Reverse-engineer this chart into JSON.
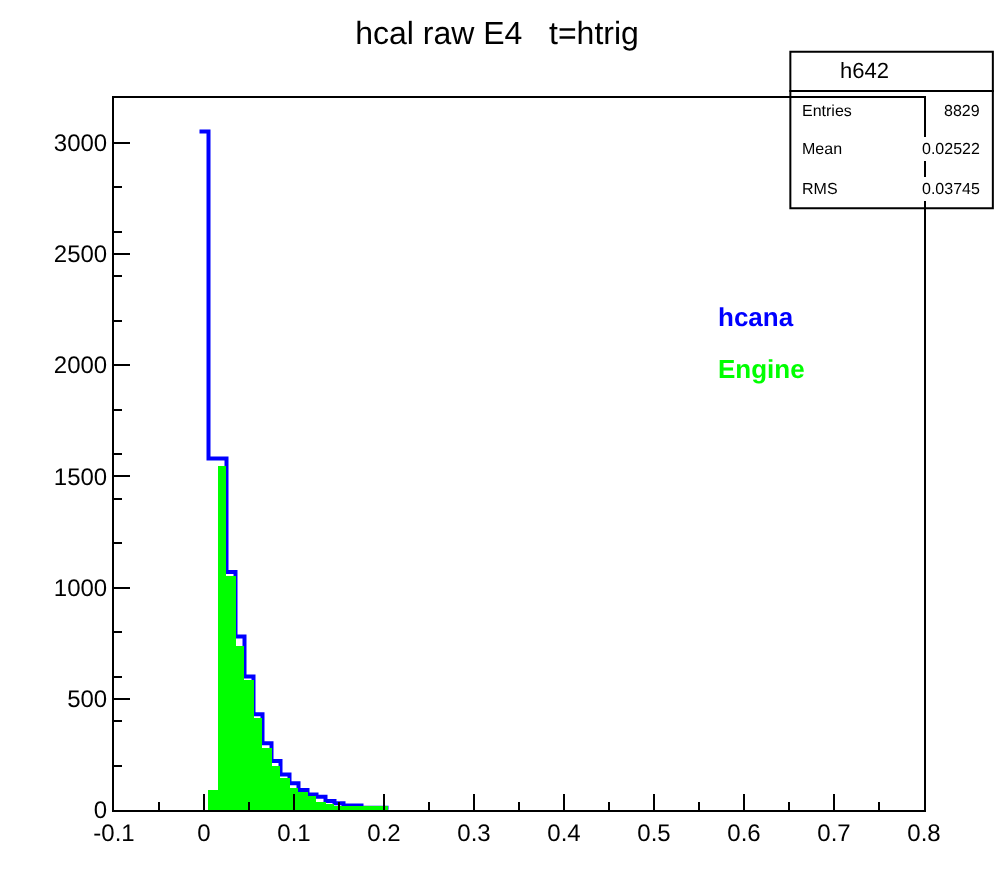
{
  "chart_data": {
    "type": "histogram",
    "title": "hcal raw E4   t=htrig",
    "bins": [
      -0.005,
      0.005,
      0.015,
      0.025,
      0.035,
      0.045,
      0.055,
      0.065,
      0.075,
      0.085,
      0.095,
      0.105,
      0.115,
      0.125,
      0.135,
      0.145,
      0.155,
      0.165,
      0.175,
      0.185,
      0.195,
      0.205,
      0.215
    ],
    "series": [
      {
        "name": "hcana",
        "type": "step",
        "color": "#0000ff",
        "x": [
          -0.005,
          0.005,
          0.015,
          0.025,
          0.035,
          0.045,
          0.055,
          0.065,
          0.075,
          0.085,
          0.095,
          0.105,
          0.115,
          0.125,
          0.135,
          0.145,
          0.155,
          0.165,
          0.175,
          0.185,
          0.195,
          0.205
        ],
        "values": [
          3050,
          1580,
          1580,
          1070,
          780,
          600,
          430,
          300,
          220,
          160,
          120,
          90,
          70,
          60,
          40,
          30,
          20,
          20,
          10,
          10,
          10,
          10
        ]
      },
      {
        "name": "Engine",
        "color": "#00ff00",
        "values": [
          0,
          90,
          1550,
          1050,
          740,
          580,
          410,
          280,
          200,
          140,
          100,
          80,
          60,
          40,
          30,
          20,
          20,
          10,
          10,
          10,
          10,
          0
        ]
      }
    ],
    "xlim": [
      -0.1,
      0.8
    ],
    "xticks": [
      {
        "value": -0.1,
        "label": "-0.1"
      },
      0,
      0.1,
      0.2,
      0.3,
      0.4,
      0.5,
      0.6,
      0.7,
      0.8
    ],
    "ylim": [
      0,
      3200
    ],
    "yticks": [
      0,
      500,
      1000,
      1500,
      2000,
      2500,
      3000
    ],
    "legend": false,
    "annotations": [
      "h642",
      "Entries 8829",
      "Mean 0.02522",
      "RMS 0.03745"
    ]
  }
}
